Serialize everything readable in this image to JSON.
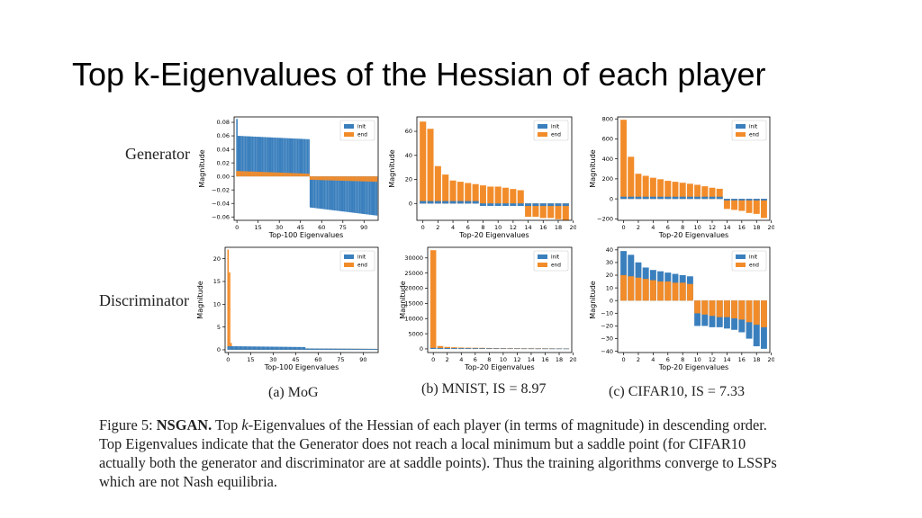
{
  "slide": {
    "title": "Top k-Eigenvalues of the Hessian of each player",
    "row_labels": [
      "Generator",
      "Discriminator"
    ],
    "subcaptions": [
      "(a) MoG",
      "(b) MNIST, IS = 8.97",
      "(c) CIFAR10, IS = 7.33"
    ],
    "caption": {
      "prefix": "Figure 5: ",
      "bold": "NSGAN.",
      "text_before_k": " Top ",
      "k": "k",
      "text_after_k": "-Eigenvalues of the Hessian of each player (in terms of magnitude) in descending order. Top Eigenvalues indicate that the Generator does not reach a local minimum but a saddle point (for CIFAR10 actually both the generator and discriminator are at saddle points). Thus the training algorithms converge to LSSPs which are not Nash equilibria."
    }
  },
  "colors": {
    "init": "#3a7fbd",
    "end": "#f28c2a",
    "axis": "#000000"
  },
  "chart_data": [
    {
      "id": "mog-generator",
      "type": "bar",
      "n": 100,
      "xlabel": "Top-100 Eigenvalues",
      "ylabel": "Magnitude",
      "legend": [
        "init",
        "end"
      ],
      "legend_position": "top-right",
      "xlim": [
        -2,
        100
      ],
      "ylim": [
        -0.065,
        0.088
      ],
      "xticks": [
        0,
        15,
        30,
        45,
        60,
        75,
        90
      ],
      "yticks": [
        0.08,
        0.06,
        0.04,
        0.02,
        0.0,
        -0.02,
        -0.04,
        -0.06
      ],
      "ytick_labels": [
        "0.08",
        "0.06",
        "0.04",
        "0.02",
        "0.00",
        "−0.02",
        "−0.04",
        "−0.06"
      ],
      "series": [
        {
          "name": "init",
          "segments": [
            {
              "from": 0,
              "to": 0,
              "start": 0.085,
              "end": 0.085
            },
            {
              "from": 1,
              "to": 51,
              "start": 0.06,
              "end": 0.055
            },
            {
              "from": 52,
              "to": 99,
              "start": -0.046,
              "end": -0.058
            }
          ]
        },
        {
          "name": "end",
          "segments": [
            {
              "from": 0,
              "to": 51,
              "start": 0.008,
              "end": 0.004
            },
            {
              "from": 52,
              "to": 99,
              "start": -0.005,
              "end": -0.008
            }
          ]
        }
      ]
    },
    {
      "id": "mnist-generator",
      "type": "bar",
      "n": 20,
      "xlabel": "Top-20 Eigenvalues",
      "ylabel": "Magnitude",
      "legend": [
        "init",
        "end"
      ],
      "legend_position": "top-right",
      "xlim": [
        -0.8,
        19.8
      ],
      "ylim": [
        -14,
        72
      ],
      "xticks": [
        0,
        2,
        4,
        6,
        8,
        10,
        12,
        14,
        16,
        18,
        20
      ],
      "yticks": [
        0,
        20,
        40,
        60
      ],
      "series": [
        {
          "name": "end",
          "values": [
            68,
            62,
            31,
            24,
            19,
            18,
            17,
            16,
            15,
            14,
            14,
            13,
            12,
            11,
            -11,
            -11,
            -12,
            -12,
            -13,
            -14
          ]
        },
        {
          "name": "init",
          "values": [
            2,
            2,
            2,
            2,
            2,
            2,
            2,
            2,
            -2,
            -2,
            -2,
            -2,
            -2,
            -2,
            -2,
            -2,
            -2,
            -2,
            -2,
            -2
          ]
        }
      ]
    },
    {
      "id": "cifar-generator",
      "type": "bar",
      "n": 20,
      "xlabel": "Top-20 Eigenvalues",
      "ylabel": "Magnitude",
      "legend": [
        "init",
        "end"
      ],
      "legend_position": "top-right",
      "xlim": [
        -0.8,
        19.8
      ],
      "ylim": [
        -215,
        820
      ],
      "xticks": [
        0,
        2,
        4,
        6,
        8,
        10,
        12,
        14,
        16,
        18,
        20
      ],
      "yticks": [
        800,
        600,
        400,
        200,
        0,
        -200
      ],
      "ytick_labels": [
        "800",
        "600",
        "400",
        "200",
        "0",
        "−200"
      ],
      "series": [
        {
          "name": "end",
          "values": [
            790,
            420,
            250,
            230,
            210,
            195,
            180,
            170,
            160,
            150,
            140,
            125,
            110,
            100,
            -100,
            -110,
            -120,
            -140,
            -150,
            -190
          ]
        },
        {
          "name": "init",
          "values": [
            20,
            20,
            20,
            20,
            20,
            20,
            20,
            20,
            20,
            20,
            20,
            20,
            20,
            20,
            -15,
            -15,
            -15,
            -15,
            -15,
            -15
          ]
        }
      ]
    },
    {
      "id": "mog-discriminator",
      "type": "bar",
      "n": 100,
      "xlabel": "Top-100 Eigenvalues",
      "ylabel": "Magnitude",
      "legend": [
        "init",
        "end"
      ],
      "legend_position": "top-right",
      "xlim": [
        -2,
        100
      ],
      "ylim": [
        -0.6,
        22.5
      ],
      "xticks": [
        0,
        15,
        30,
        45,
        60,
        75,
        90
      ],
      "yticks": [
        20,
        15,
        10,
        5,
        0
      ],
      "series": [
        {
          "name": "end",
          "segments": [
            {
              "from": 0,
              "to": 0,
              "start": 22,
              "end": 22
            },
            {
              "from": 1,
              "to": 1,
              "start": 17,
              "end": 17
            },
            {
              "from": 2,
              "to": 2,
              "start": 1.5,
              "end": 1.5
            },
            {
              "from": 3,
              "to": 99,
              "start": 0.4,
              "end": 0.2
            }
          ]
        },
        {
          "name": "init",
          "segments": [
            {
              "from": 0,
              "to": 51,
              "start": 0.8,
              "end": 0.6
            },
            {
              "from": 52,
              "to": 99,
              "start": 0.3,
              "end": 0.2
            }
          ]
        }
      ]
    },
    {
      "id": "mnist-discriminator",
      "type": "bar",
      "n": 20,
      "xlabel": "Top-20 Eigenvalues",
      "ylabel": "Magnitude",
      "legend": [
        "init",
        "end"
      ],
      "legend_position": "top-right",
      "xlim": [
        -0.8,
        19.8
      ],
      "ylim": [
        -1200,
        33500
      ],
      "xticks": [
        0,
        2,
        4,
        6,
        8,
        10,
        12,
        14,
        16,
        18,
        20
      ],
      "yticks": [
        30000,
        25000,
        20000,
        15000,
        10000,
        5000,
        0
      ],
      "series": [
        {
          "name": "end",
          "values": [
            32500,
            900,
            600,
            500,
            420,
            380,
            340,
            310,
            280,
            260,
            240,
            220,
            210,
            200,
            190,
            180,
            170,
            160,
            150,
            140
          ]
        },
        {
          "name": "init",
          "values": [
            300,
            280,
            260,
            240,
            220,
            200,
            180,
            160,
            150,
            140,
            130,
            120,
            110,
            100,
            100,
            90,
            90,
            80,
            80,
            70
          ]
        }
      ]
    },
    {
      "id": "cifar-discriminator",
      "type": "bar",
      "n": 20,
      "xlabel": "Top-20 Eigenvalues",
      "ylabel": "Magnitude",
      "legend": [
        "init",
        "end"
      ],
      "legend_position": "top-right",
      "xlim": [
        -0.8,
        19.8
      ],
      "ylim": [
        -41,
        42
      ],
      "xticks": [
        0,
        2,
        4,
        6,
        8,
        10,
        12,
        14,
        16,
        18,
        20
      ],
      "yticks": [
        40,
        30,
        20,
        10,
        0,
        -10,
        -20,
        -30,
        -40
      ],
      "ytick_labels": [
        "40",
        "30",
        "20",
        "10",
        "0",
        "−10",
        "−20",
        "−30",
        "−40"
      ],
      "series": [
        {
          "name": "init",
          "values": [
            39,
            36,
            30,
            26,
            24,
            23,
            22,
            21,
            20,
            19,
            -20,
            -20,
            -21,
            -21,
            -22,
            -23,
            -25,
            -30,
            -36,
            -38
          ]
        },
        {
          "name": "end",
          "values": [
            20,
            19,
            18,
            17,
            16,
            15,
            15,
            14,
            14,
            13,
            -10,
            -11,
            -12,
            -13,
            -13,
            -14,
            -15,
            -17,
            -19,
            -21
          ]
        }
      ]
    }
  ]
}
